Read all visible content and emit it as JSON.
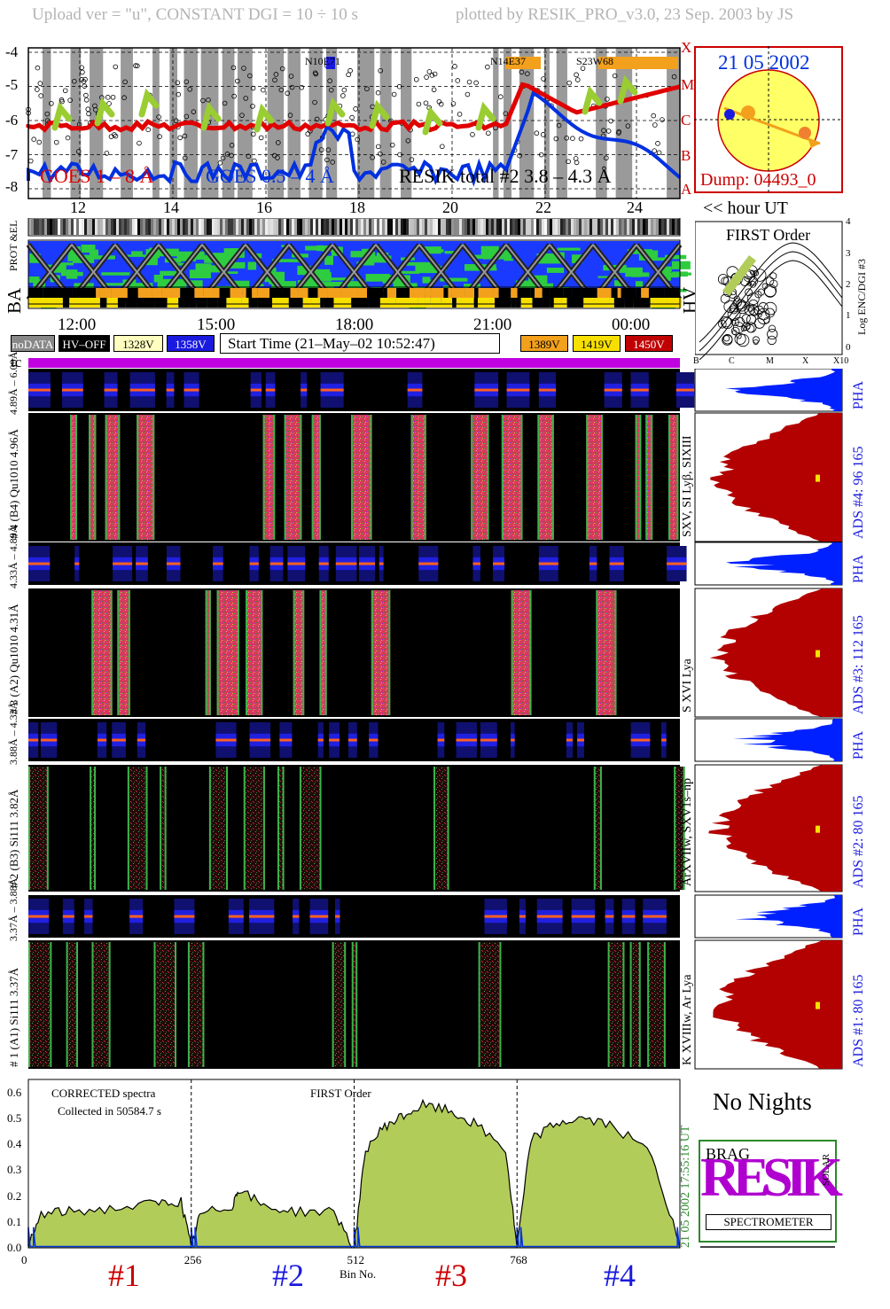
{
  "header": {
    "left": "Upload ver = \"u\", CONSTANT  DGI =  10 ÷  10 s",
    "right": "plotted by RESIK_PRO_v3.0, 23 Sep. 2003 by JS"
  },
  "colors": {
    "goes_long": "#e00000",
    "goes_short": "#0030e0",
    "resik": "#000000",
    "fill_green": "#b2cc5a",
    "ads_red": "#b30000",
    "pha_blue": "#0020ff",
    "ba_orange": "#f3a01c",
    "ba_yellow": "#f7e000",
    "tc_purple": "#c000e0",
    "sun_yellow": "#ffff66"
  },
  "goes_panel": {
    "yticks": [
      "-4",
      "-5",
      "-6",
      "-7",
      "-8"
    ],
    "classes": [
      "X",
      "M",
      "C",
      "B",
      "A"
    ],
    "xticks": [
      "12",
      "14",
      "16",
      "18",
      "20",
      "22",
      "24"
    ],
    "legend_goes_long": "GOES 1 – 8 Å",
    "legend_goes_short": "GOES 0.5 – 4 Å",
    "legend_resik": "RESIK total #2  3.8 – 4.3 Å",
    "flare_labels": [
      "N10E71",
      "N14E37",
      "S23W68"
    ],
    "hour_ut": "<< hour UT"
  },
  "sun_panel": {
    "date": "21 05 2002",
    "dump": "Dump: 04493_0"
  },
  "status_panel": {
    "prot_label": "PROT &EL",
    "ba_label": "BA",
    "hv_label": "HV",
    "time_ticks": [
      "12:00",
      "15:00",
      "18:00",
      "21:00",
      "00:00"
    ]
  },
  "first_order_panel": {
    "title": "FIRST Order",
    "ylabel": "Log ENC/DGI #3",
    "yticks": [
      "4",
      "3",
      "2",
      "1",
      "0"
    ],
    "xticks": [
      "B",
      "C",
      "M",
      "X",
      "X10"
    ]
  },
  "legend_row": {
    "nodata": "noDATA",
    "hvoff": "HV–OFF",
    "v1328": "1328V",
    "v1358": "1358V",
    "start_time": "Start Time (21–May–02 10:52:47)",
    "v1389": "1389V",
    "v1419": "1419V",
    "v1450": "1450V",
    "tc": "tc"
  },
  "channels": [
    {
      "pha_label": "4.89Å – 6.09Å",
      "main_label": "# 4 (B4) Qu1010 4.96Å",
      "side_label": "SXV, SI Lyβ, SIXIII",
      "ads": "ADS #4:   96 165",
      "pha": "PHA"
    },
    {
      "pha_label": "4.33Å – 4.89Å",
      "main_label": "# 3 (A2) Qu1010  4.31Å",
      "side_label": "S XVI Lya",
      "ads": "ADS #3:   112 165",
      "pha": "PHA"
    },
    {
      "pha_label": "3.88Å – 4.33Å",
      "main_label": "# 2 (B3) Si111  3.82Å",
      "side_label": "ArXVIIw, SXV1s–np",
      "ads": "ADS #2:   80 165",
      "pha": "PHA"
    },
    {
      "pha_label": "3.37Å – 3.88Å",
      "main_label": "# 1 (A1) Si111  3.37Å",
      "side_label": "K XVIIIw, Ar Lya",
      "ads": "ADS #1:   80 165",
      "pha": "PHA"
    }
  ],
  "spectrum_panel": {
    "note1": "CORRECTED spectra",
    "note2": "Collected in 50584.7 s",
    "note3": "FIRST Order",
    "yticks": [
      "0.6",
      "0.5",
      "0.4",
      "0.3",
      "0.2",
      "0.1",
      "0.0"
    ],
    "xticks": [
      "0",
      "256",
      "512",
      "768"
    ],
    "xlabel": "Bin No.",
    "right_label": "21 05 2002      17:55:16 UT",
    "channel_labels": [
      "#1",
      "#2",
      "#3",
      "#4"
    ]
  },
  "right_bottom": {
    "no_nights": "No Nights",
    "logo_text": "SPECTROMETER",
    "logo_letters": "RESIK",
    "logo_small": [
      "BRAG",
      "SOLAR"
    ]
  },
  "chart_data": {
    "type": "line",
    "title": "",
    "xlabel": "Bin No.",
    "ylabel": "",
    "xlim": [
      0,
      1024
    ],
    "ylim": [
      0,
      0.65
    ],
    "x": [
      0,
      20,
      64,
      128,
      200,
      240,
      256,
      270,
      320,
      330,
      370,
      420,
      480,
      512,
      530,
      560,
      590,
      620,
      660,
      700,
      750,
      768,
      790,
      830,
      870,
      920,
      980,
      1024
    ],
    "series": [
      {
        "name": "",
        "values": [
          0.0,
          0.13,
          0.14,
          0.15,
          0.17,
          0.18,
          0.0,
          0.13,
          0.16,
          0.23,
          0.16,
          0.14,
          0.14,
          0.0,
          0.38,
          0.47,
          0.51,
          0.55,
          0.53,
          0.48,
          0.38,
          0.0,
          0.42,
          0.48,
          0.5,
          0.47,
          0.36,
          0.0
        ]
      }
    ]
  }
}
